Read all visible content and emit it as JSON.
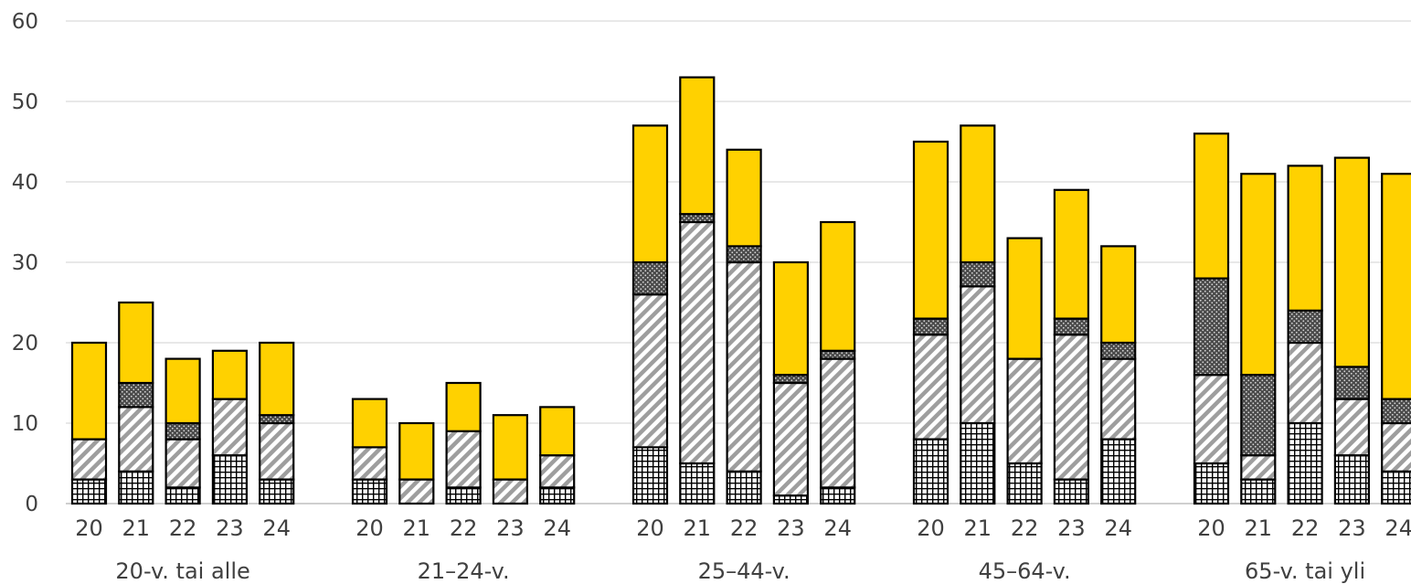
{
  "chart_data": {
    "type": "bar",
    "stacked": true,
    "ylim": [
      0,
      60
    ],
    "yticks": [
      0,
      10,
      20,
      30,
      40,
      50,
      60
    ],
    "grid": true,
    "legend": "none",
    "groups": [
      {
        "label": "20-v. tai alle",
        "years": [
          "20",
          "21",
          "22",
          "23",
          "24"
        ],
        "segments": [
          [
            3,
            5,
            0,
            12
          ],
          [
            4,
            8,
            3,
            10
          ],
          [
            2,
            6,
            2,
            8
          ],
          [
            6,
            7,
            0,
            6
          ],
          [
            3,
            7,
            1,
            9
          ]
        ]
      },
      {
        "label": "21–24-v.",
        "years": [
          "20",
          "21",
          "22",
          "23",
          "24"
        ],
        "segments": [
          [
            3,
            4,
            0,
            6
          ],
          [
            0,
            3,
            0,
            7
          ],
          [
            2,
            7,
            0,
            6
          ],
          [
            0,
            3,
            0,
            8
          ],
          [
            2,
            4,
            0,
            6
          ]
        ]
      },
      {
        "label": "25–44-v.",
        "years": [
          "20",
          "21",
          "22",
          "23",
          "24"
        ],
        "segments": [
          [
            7,
            19,
            4,
            17
          ],
          [
            5,
            30,
            1,
            17
          ],
          [
            4,
            26,
            2,
            12
          ],
          [
            1,
            14,
            1,
            14
          ],
          [
            2,
            16,
            1,
            16
          ]
        ]
      },
      {
        "label": "45–64-v.",
        "years": [
          "20",
          "21",
          "22",
          "23",
          "24"
        ],
        "segments": [
          [
            8,
            13,
            2,
            22
          ],
          [
            10,
            17,
            3,
            17
          ],
          [
            5,
            13,
            0,
            15
          ],
          [
            3,
            18,
            2,
            16
          ],
          [
            8,
            10,
            2,
            12
          ]
        ]
      },
      {
        "label": "65-v. tai yli",
        "years": [
          "20",
          "21",
          "22",
          "23",
          "24"
        ],
        "segments": [
          [
            5,
            11,
            12,
            18
          ],
          [
            3,
            3,
            10,
            25
          ],
          [
            10,
            10,
            4,
            18
          ],
          [
            6,
            7,
            4,
            26
          ],
          [
            4,
            6,
            3,
            28
          ]
        ]
      }
    ],
    "segment_styles": [
      "grid-pattern",
      "diagonal-stripes",
      "dark-dots",
      "solid-yellow"
    ],
    "colors": {
      "yellow": "#FFD100",
      "dark": "#4a4a4a",
      "stripe": "#9e9e9e"
    }
  }
}
